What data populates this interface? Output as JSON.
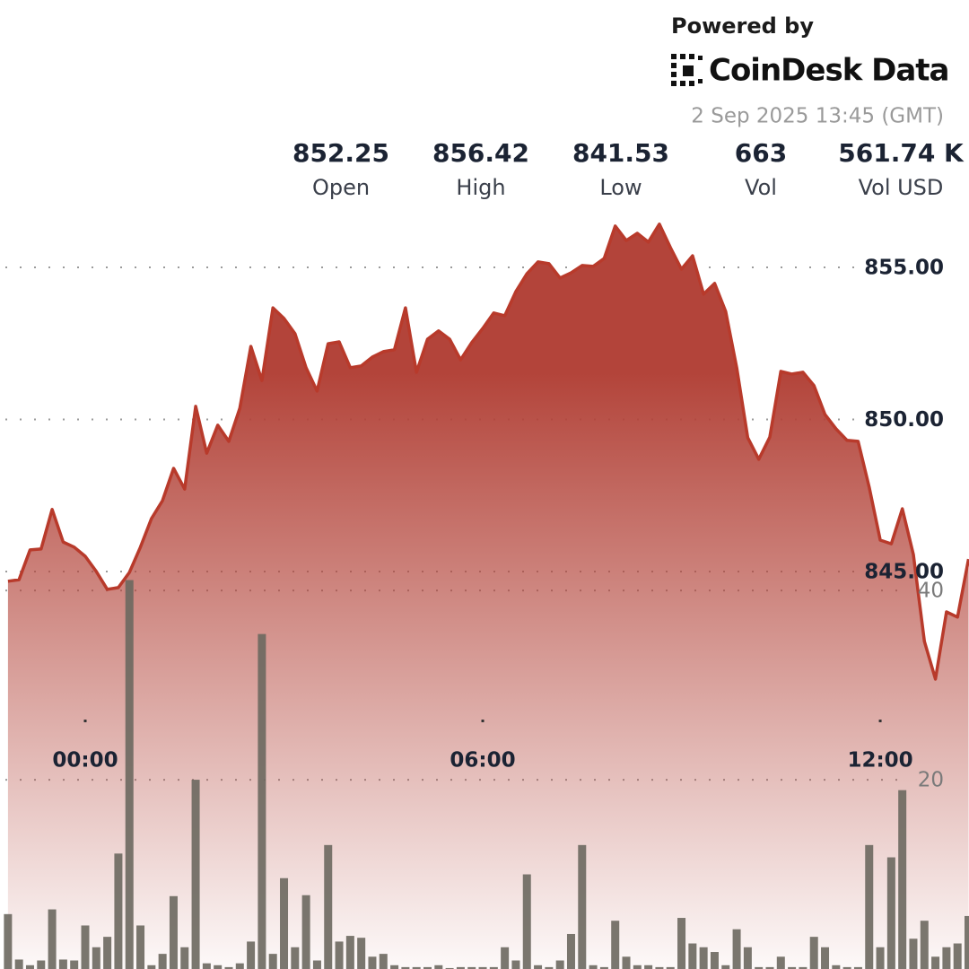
{
  "header": {
    "powered_by": "Powered by",
    "brand": "CoinDesk Data",
    "timestamp": "2 Sep 2025 13:45 (GMT)"
  },
  "stats": [
    {
      "value": "852.25",
      "label": "Open"
    },
    {
      "value": "856.42",
      "label": "High"
    },
    {
      "value": "841.53",
      "label": "Low"
    },
    {
      "value": "663",
      "label": "Vol"
    },
    {
      "value": "561.74 K",
      "label": "Vol USD"
    }
  ],
  "chart_data": {
    "type": "line",
    "x": [
      -70,
      -60,
      -50,
      -40,
      -30,
      -20,
      -10,
      0,
      10,
      20,
      30,
      40,
      50,
      60,
      70,
      80,
      90,
      100,
      110,
      120,
      130,
      140,
      150,
      160,
      170,
      180,
      190,
      200,
      210,
      220,
      230,
      240,
      250,
      260,
      270,
      280,
      290,
      300,
      310,
      320,
      330,
      340,
      350,
      360,
      370,
      380,
      390,
      400,
      410,
      420,
      430,
      440,
      450,
      460,
      470,
      480,
      490,
      500,
      510,
      520,
      530,
      540,
      550,
      560,
      570,
      580,
      590,
      600,
      610,
      620,
      630,
      640,
      650,
      660,
      670,
      680,
      690,
      700,
      710,
      720,
      730,
      740,
      750,
      760,
      770,
      780,
      790,
      800
    ],
    "xlim": [
      -77.2,
      800.4
    ],
    "xticks": [
      {
        "value": 0,
        "label": "00:00"
      },
      {
        "value": 360,
        "label": "06:00"
      },
      {
        "value": 720,
        "label": "12:00"
      }
    ],
    "ylim": [
      831.93,
      863.79
    ],
    "yticks": [
      {
        "value": 845,
        "label": "845.00"
      },
      {
        "value": 850,
        "label": "850.00"
      },
      {
        "value": 855,
        "label": "855.00"
      }
    ],
    "y2lim": [
      0,
      102.4
    ],
    "y2ticks": [
      20,
      40
    ],
    "grid": true,
    "series": [
      {
        "type": "line",
        "color": "#b83a2b",
        "values": [
          844.68,
          844.73,
          845.71,
          845.74,
          847.04,
          845.97,
          845.8,
          845.5,
          845.0,
          844.41,
          844.47,
          844.97,
          845.8,
          846.74,
          847.33,
          848.39,
          847.71,
          850.43,
          848.89,
          849.81,
          849.28,
          850.37,
          852.4,
          851.28,
          853.67,
          853.32,
          852.82,
          851.7,
          850.93,
          852.49,
          852.55,
          851.7,
          851.76,
          852.05,
          852.23,
          852.29,
          853.67,
          851.55,
          852.64,
          852.91,
          852.64,
          851.96,
          852.52,
          852.99,
          853.5,
          853.41,
          854.2,
          854.79,
          855.18,
          855.12,
          854.65,
          854.82,
          855.06,
          855.03,
          855.29,
          856.36,
          855.88,
          856.12,
          855.83,
          856.42,
          855.65,
          854.94,
          855.38,
          854.12,
          854.47,
          853.55,
          851.7,
          849.4,
          848.69,
          849.42,
          851.58,
          851.49,
          851.55,
          851.11,
          850.16,
          849.69,
          849.31,
          849.28,
          847.77,
          846.03,
          845.91,
          847.06,
          845.56,
          842.7,
          841.46,
          843.67,
          843.5,
          845.41
        ]
      },
      {
        "type": "bar",
        "axis": "y2",
        "color": "#6b685f",
        "values": [
          5.8,
          1.0,
          0.4,
          0.9,
          6.3,
          1.0,
          0.9,
          4.6,
          2.3,
          3.4,
          12.2,
          41.1,
          4.6,
          0.4,
          1.6,
          7.7,
          2.3,
          20.0,
          0.6,
          0.4,
          0.2,
          0.6,
          2.9,
          35.4,
          1.6,
          9.6,
          2.3,
          7.8,
          0.9,
          13.1,
          2.9,
          3.5,
          3.3,
          1.3,
          1.6,
          0.4,
          0.2,
          0.2,
          0.2,
          0.4,
          0.1,
          0.2,
          0.2,
          0.2,
          0.2,
          2.3,
          0.9,
          10.0,
          0.4,
          0.2,
          0.9,
          3.7,
          13.1,
          0.4,
          0.2,
          5.1,
          1.3,
          0.4,
          0.4,
          0.2,
          0.2,
          5.4,
          2.7,
          2.3,
          1.8,
          0.4,
          4.2,
          2.3,
          0.2,
          0.2,
          1.3,
          0.2,
          0.2,
          3.4,
          2.3,
          0.4,
          0.2,
          0.2,
          13.1,
          2.3,
          11.8,
          18.9,
          3.2,
          5.1,
          1.3,
          2.3,
          2.7,
          5.6
        ]
      }
    ]
  }
}
